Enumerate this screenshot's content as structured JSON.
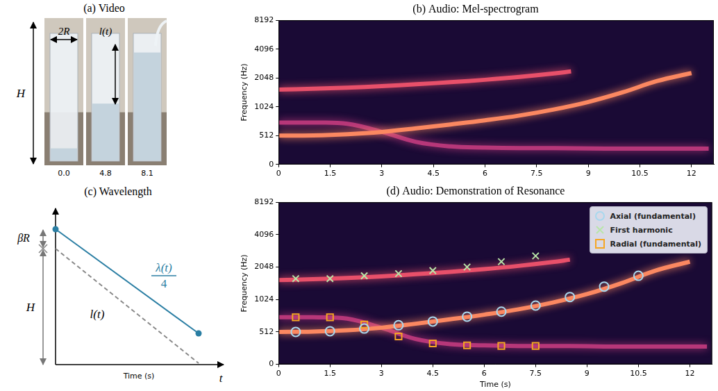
{
  "video": {
    "title": "(a) Video",
    "width_label": "2R",
    "level_label": "l(t)",
    "height_label": "H",
    "frame_times": [
      {
        "value": 0,
        "label": "0.0"
      },
      4.8,
      8.1
    ]
  },
  "chart_data": [
    {
      "type": "line",
      "title": "(b) Audio: Mel-spectrogram",
      "y_label": "Frequency (Hz)",
      "xlim": [
        0,
        12.65
      ],
      "xticks": [
        0,
        1.5,
        3,
        4.5,
        6,
        7.5,
        9,
        10.5,
        12
      ],
      "ylim": [
        0,
        8192
      ],
      "yticks": [
        0,
        512,
        1024,
        2048,
        4096,
        8192
      ],
      "grid": false,
      "series": [
        {
          "color": "#fb8861",
          "x": [
            0,
            1,
            2,
            3,
            4,
            5,
            6,
            7,
            8,
            9,
            10,
            11,
            12
          ],
          "values": [
            512,
            515,
            530,
            560,
            610,
            670,
            740,
            830,
            960,
            1150,
            1450,
            1900,
            2300
          ]
        },
        {
          "color": "#e8506a",
          "x": [
            0,
            1,
            2,
            3,
            4,
            5,
            6,
            7,
            8,
            8.5
          ],
          "values": [
            1550,
            1580,
            1620,
            1680,
            1760,
            1850,
            1960,
            2100,
            2280,
            2400
          ]
        },
        {
          "color": "#b73779",
          "x": [
            0,
            1,
            2,
            3,
            4,
            5,
            6,
            7,
            8,
            9,
            10,
            11,
            12.5
          ],
          "values": [
            700,
            700,
            680,
            560,
            400,
            320,
            300,
            290,
            290,
            285,
            280,
            280,
            280
          ]
        }
      ]
    },
    {
      "type": "scatter",
      "title": "(d) Audio: Demonstration of Resonance",
      "x_label": "Time (s)",
      "y_label": "Frequency (Hz)",
      "xlim": [
        0,
        12.65
      ],
      "xticks": [
        0,
        1.5,
        3,
        4.5,
        6,
        7.5,
        9,
        10.5,
        12
      ],
      "ylim": [
        0,
        8192
      ],
      "yticks": [
        0,
        512,
        1024,
        2048,
        4096,
        8192
      ],
      "grid": false,
      "legend": "upper right",
      "series": [
        {
          "name": "Axial (fundamental)",
          "color": "#a8d8ee",
          "marker": "circle",
          "x": [
            0.5,
            1.5,
            2.5,
            3.5,
            4.5,
            5.5,
            6.5,
            7.5,
            8.5,
            9.5,
            10.5
          ],
          "values": [
            512,
            520,
            550,
            590,
            640,
            710,
            790,
            900,
            1080,
            1350,
            1700
          ]
        },
        {
          "name": "First harmonic",
          "color": "#b8e6a8",
          "marker": "x",
          "x": [
            0.5,
            1.5,
            2.5,
            3.5,
            4.5,
            5.5,
            6.5,
            7.5
          ],
          "values": [
            1600,
            1600,
            1700,
            1780,
            1900,
            2050,
            2300,
            2600
          ]
        },
        {
          "name": "Radial (fundamental)",
          "color": "#f5a623",
          "marker": "square",
          "x": [
            0.5,
            1.5,
            2.5,
            3.5,
            4.5,
            5.5,
            6.5,
            7.5
          ],
          "values": [
            700,
            700,
            600,
            440,
            330,
            300,
            290,
            290
          ]
        }
      ]
    }
  ],
  "wavelength": {
    "title": "(c) Wavelength",
    "x_label": "Time (s)",
    "x_symbol": "t",
    "curves": [
      {
        "name": {
          "numerator": "λ(t)",
          "denominator": "4"
        },
        "color": "#2a7ea3",
        "line_style": "solid",
        "marker": "circle"
      },
      {
        "name": "l(t)",
        "color": "#888888",
        "line_style": "dashed"
      }
    ],
    "brackets": [
      "βR",
      "H"
    ]
  }
}
